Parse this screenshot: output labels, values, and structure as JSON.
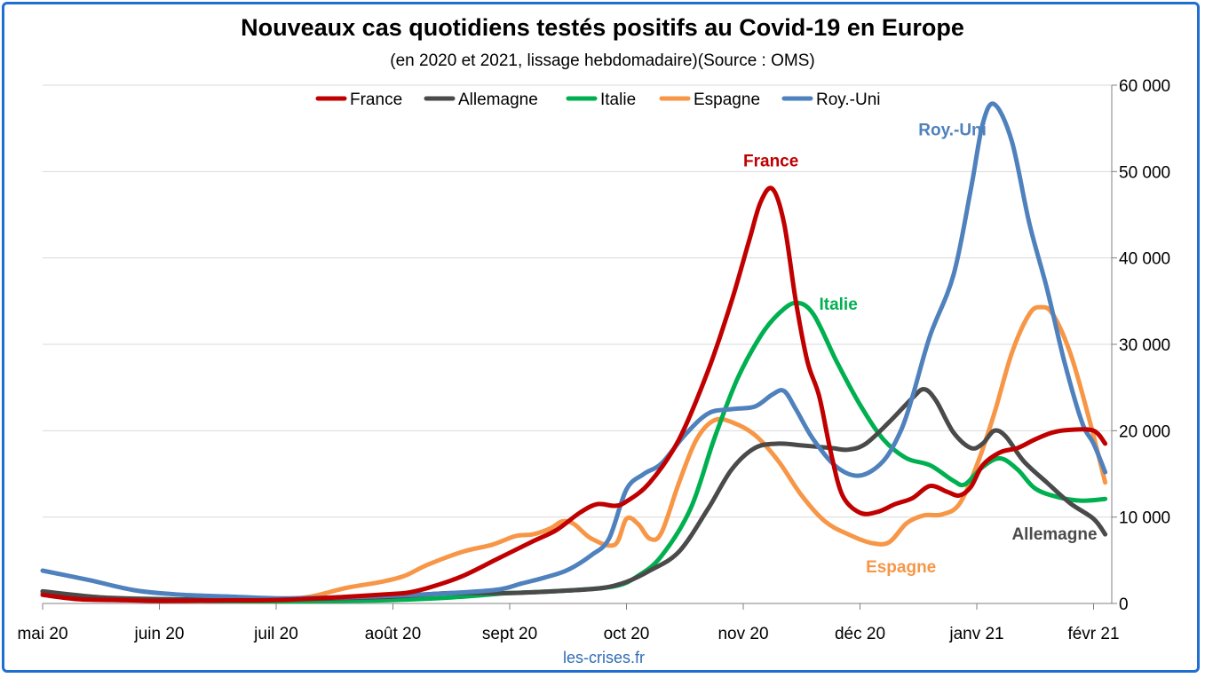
{
  "title": "Nouveaux cas quotidiens testés positifs au Covid-19 en Europe",
  "subtitle": "(en 2020 et 2021, lissage hebdomadaire)(Source : OMS)",
  "source": "les-crises.fr",
  "chart_data": {
    "type": "line",
    "title": "Nouveaux cas quotidiens testés positifs au Covid-19 en Europe",
    "subtitle": "(en 2020 et 2021, lissage hebdomadaire)(Source : OMS)",
    "xlabel": "",
    "ylabel": "",
    "x_unit": "months since mai 20",
    "x_ticks": [
      {
        "x": 0,
        "label": "mai 20"
      },
      {
        "x": 1,
        "label": "juin 20"
      },
      {
        "x": 2,
        "label": "juil 20"
      },
      {
        "x": 3,
        "label": "août 20"
      },
      {
        "x": 4,
        "label": "sept 20"
      },
      {
        "x": 5,
        "label": "oct 20"
      },
      {
        "x": 6,
        "label": "nov 20"
      },
      {
        "x": 7,
        "label": "déc 20"
      },
      {
        "x": 8,
        "label": "janv 21"
      },
      {
        "x": 9,
        "label": "févr 21"
      }
    ],
    "xlim": [
      0,
      9.1
    ],
    "ylim": [
      0,
      60000
    ],
    "y_ticks": [
      {
        "y": 0,
        "label": "0"
      },
      {
        "y": 10000,
        "label": "10 000"
      },
      {
        "y": 20000,
        "label": "20 000"
      },
      {
        "y": 30000,
        "label": "30 000"
      },
      {
        "y": 40000,
        "label": "40 000"
      },
      {
        "y": 50000,
        "label": "50 000"
      },
      {
        "y": 60000,
        "label": "60 000"
      }
    ],
    "y_axis_position": "right",
    "grid": "horizontal",
    "legend_position": "top",
    "series": [
      {
        "name": "France",
        "color": "#c00000",
        "points": [
          [
            0,
            1000
          ],
          [
            0.3,
            500
          ],
          [
            0.6,
            400
          ],
          [
            1,
            300
          ],
          [
            1.5,
            350
          ],
          [
            2,
            400
          ],
          [
            2.5,
            700
          ],
          [
            3,
            1100
          ],
          [
            3.15,
            1300
          ],
          [
            3.35,
            2000
          ],
          [
            3.6,
            3200
          ],
          [
            3.9,
            5200
          ],
          [
            4.2,
            7200
          ],
          [
            4.4,
            8500
          ],
          [
            4.6,
            10500
          ],
          [
            4.75,
            11500
          ],
          [
            4.9,
            11300
          ],
          [
            5,
            11800
          ],
          [
            5.2,
            14000
          ],
          [
            5.45,
            19000
          ],
          [
            5.7,
            27000
          ],
          [
            5.9,
            35000
          ],
          [
            6.05,
            42000
          ],
          [
            6.15,
            46500
          ],
          [
            6.25,
            48000
          ],
          [
            6.35,
            44000
          ],
          [
            6.45,
            35000
          ],
          [
            6.55,
            28000
          ],
          [
            6.65,
            24000
          ],
          [
            6.75,
            17500
          ],
          [
            6.85,
            12500
          ],
          [
            7,
            10500
          ],
          [
            7.15,
            10600
          ],
          [
            7.3,
            11500
          ],
          [
            7.45,
            12200
          ],
          [
            7.6,
            13600
          ],
          [
            7.75,
            12900
          ],
          [
            7.85,
            12500
          ],
          [
            7.95,
            13500
          ],
          [
            8.05,
            16000
          ],
          [
            8.2,
            17500
          ],
          [
            8.35,
            18000
          ],
          [
            8.5,
            19000
          ],
          [
            8.65,
            19800
          ],
          [
            8.8,
            20100
          ],
          [
            9,
            20000
          ],
          [
            9.1,
            18500
          ]
        ]
      },
      {
        "name": "Allemagne",
        "color": "#4a4a4a",
        "points": [
          [
            0,
            1400
          ],
          [
            0.5,
            700
          ],
          [
            1,
            500
          ],
          [
            1.5,
            450
          ],
          [
            2,
            450
          ],
          [
            2.5,
            600
          ],
          [
            3,
            800
          ],
          [
            3.5,
            1200
          ],
          [
            4,
            1200
          ],
          [
            4.5,
            1500
          ],
          [
            4.8,
            1800
          ],
          [
            5,
            2500
          ],
          [
            5.2,
            3800
          ],
          [
            5.45,
            6000
          ],
          [
            5.7,
            11000
          ],
          [
            5.9,
            15500
          ],
          [
            6.1,
            18000
          ],
          [
            6.3,
            18500
          ],
          [
            6.5,
            18300
          ],
          [
            6.75,
            18000
          ],
          [
            6.9,
            17800
          ],
          [
            7.05,
            18500
          ],
          [
            7.25,
            21000
          ],
          [
            7.45,
            23800
          ],
          [
            7.55,
            24800
          ],
          [
            7.65,
            23500
          ],
          [
            7.8,
            19800
          ],
          [
            7.95,
            18000
          ],
          [
            8.05,
            18500
          ],
          [
            8.15,
            20000
          ],
          [
            8.25,
            19300
          ],
          [
            8.4,
            16500
          ],
          [
            8.6,
            14000
          ],
          [
            8.8,
            11600
          ],
          [
            9,
            9800
          ],
          [
            9.1,
            8000
          ]
        ]
      },
      {
        "name": "Italie",
        "color": "#00b050",
        "points": [
          [
            0,
            1400
          ],
          [
            0.5,
            600
          ],
          [
            1,
            400
          ],
          [
            1.5,
            300
          ],
          [
            2,
            250
          ],
          [
            2.5,
            300
          ],
          [
            3,
            400
          ],
          [
            3.5,
            700
          ],
          [
            3.8,
            1000
          ],
          [
            4,
            1200
          ],
          [
            4.5,
            1500
          ],
          [
            4.9,
            2000
          ],
          [
            5.1,
            3200
          ],
          [
            5.3,
            5500
          ],
          [
            5.55,
            11000
          ],
          [
            5.75,
            19000
          ],
          [
            5.95,
            26000
          ],
          [
            6.15,
            31000
          ],
          [
            6.3,
            33500
          ],
          [
            6.45,
            34800
          ],
          [
            6.6,
            33500
          ],
          [
            6.8,
            28000
          ],
          [
            7,
            23000
          ],
          [
            7.2,
            19000
          ],
          [
            7.4,
            16800
          ],
          [
            7.6,
            16000
          ],
          [
            7.8,
            14200
          ],
          [
            7.9,
            13800
          ],
          [
            8.05,
            15800
          ],
          [
            8.2,
            16800
          ],
          [
            8.35,
            15500
          ],
          [
            8.5,
            13300
          ],
          [
            8.7,
            12300
          ],
          [
            8.9,
            11900
          ],
          [
            9.1,
            12100
          ]
        ]
      },
      {
        "name": "Espagne",
        "color": "#f79646",
        "points": [
          [
            0,
            1200
          ],
          [
            0.5,
            700
          ],
          [
            1,
            500
          ],
          [
            1.5,
            400
          ],
          [
            2,
            400
          ],
          [
            2.3,
            800
          ],
          [
            2.6,
            1800
          ],
          [
            2.9,
            2500
          ],
          [
            3.1,
            3200
          ],
          [
            3.3,
            4500
          ],
          [
            3.6,
            6000
          ],
          [
            3.85,
            6800
          ],
          [
            4.05,
            7800
          ],
          [
            4.2,
            8000
          ],
          [
            4.35,
            8700
          ],
          [
            4.45,
            9500
          ],
          [
            4.55,
            9200
          ],
          [
            4.7,
            7500
          ],
          [
            4.9,
            6800
          ],
          [
            5,
            9800
          ],
          [
            5.1,
            9200
          ],
          [
            5.2,
            7500
          ],
          [
            5.3,
            8200
          ],
          [
            5.45,
            14000
          ],
          [
            5.6,
            19000
          ],
          [
            5.75,
            21200
          ],
          [
            5.9,
            21000
          ],
          [
            6.1,
            19500
          ],
          [
            6.3,
            16500
          ],
          [
            6.5,
            12500
          ],
          [
            6.7,
            9500
          ],
          [
            6.9,
            8000
          ],
          [
            7.1,
            7000
          ],
          [
            7.25,
            7100
          ],
          [
            7.4,
            9300
          ],
          [
            7.55,
            10200
          ],
          [
            7.7,
            10300
          ],
          [
            7.85,
            11500
          ],
          [
            8,
            16000
          ],
          [
            8.15,
            22000
          ],
          [
            8.3,
            29000
          ],
          [
            8.45,
            33500
          ],
          [
            8.55,
            34300
          ],
          [
            8.65,
            33500
          ],
          [
            8.8,
            29000
          ],
          [
            8.95,
            22000
          ],
          [
            9.1,
            14000
          ]
        ]
      },
      {
        "name": "Roy.-Uni",
        "color": "#4f81bd",
        "points": [
          [
            0,
            3800
          ],
          [
            0.4,
            2700
          ],
          [
            0.8,
            1500
          ],
          [
            1.2,
            1000
          ],
          [
            1.6,
            800
          ],
          [
            2,
            600
          ],
          [
            2.5,
            700
          ],
          [
            3,
            900
          ],
          [
            3.5,
            1200
          ],
          [
            3.9,
            1600
          ],
          [
            4.1,
            2300
          ],
          [
            4.3,
            3000
          ],
          [
            4.5,
            3900
          ],
          [
            4.7,
            5600
          ],
          [
            4.85,
            7500
          ],
          [
            5,
            13200
          ],
          [
            5.15,
            15000
          ],
          [
            5.3,
            16200
          ],
          [
            5.5,
            19500
          ],
          [
            5.7,
            22000
          ],
          [
            5.9,
            22500
          ],
          [
            6.1,
            22800
          ],
          [
            6.25,
            24200
          ],
          [
            6.35,
            24600
          ],
          [
            6.45,
            22500
          ],
          [
            6.6,
            19000
          ],
          [
            6.8,
            15800
          ],
          [
            7,
            14800
          ],
          [
            7.2,
            16500
          ],
          [
            7.35,
            20000
          ],
          [
            7.45,
            24000
          ],
          [
            7.6,
            31000
          ],
          [
            7.8,
            38000
          ],
          [
            7.95,
            48000
          ],
          [
            8.05,
            55500
          ],
          [
            8.15,
            57800
          ],
          [
            8.3,
            53500
          ],
          [
            8.45,
            44000
          ],
          [
            8.6,
            36500
          ],
          [
            8.75,
            28000
          ],
          [
            8.9,
            21000
          ],
          [
            9,
            18500
          ],
          [
            9.1,
            15200
          ]
        ]
      }
    ],
    "annotations": [
      {
        "text": "France",
        "color": "#c00000",
        "x": 6.0,
        "y": 50600
      },
      {
        "text": "Italie",
        "color": "#00b050",
        "x": 6.65,
        "y": 34000
      },
      {
        "text": "Roy.-Uni",
        "color": "#4f81bd",
        "x": 7.5,
        "y": 54200
      },
      {
        "text": "Allemagne",
        "color": "#4a4a4a",
        "x": 8.3,
        "y": 7400
      },
      {
        "text": "Espagne",
        "color": "#f79646",
        "x": 7.05,
        "y": 3600
      }
    ]
  }
}
